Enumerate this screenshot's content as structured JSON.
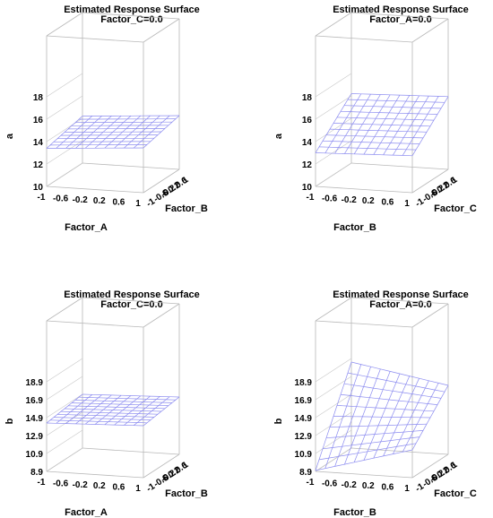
{
  "chart_data": [
    {
      "type": "surface",
      "title": "Estimated Response Surface",
      "subtitle": "Factor_C=0.0",
      "xlabel": "Factor_A",
      "ylabel": "Factor_B",
      "zlabel": "a",
      "x_ticks": [
        "-1",
        "-0.6",
        "-0.2",
        "0.2",
        "0.6",
        "1"
      ],
      "y_ticks": [
        "-1",
        "-0.6",
        "-0.2",
        "0.2",
        "0.6",
        "1"
      ],
      "z_ticks": [
        "10",
        "12",
        "14",
        "16",
        "18"
      ],
      "xlim": [
        -1,
        1
      ],
      "ylim": [
        -1,
        1
      ],
      "zlim": [
        10,
        18
      ],
      "surface": {
        "corner_xmin_ymin": 13.4,
        "corner_xmax_ymin": 14.0,
        "corner_xmin_ymax": 14.2,
        "corner_xmax_ymax": 14.8
      },
      "grid": true
    },
    {
      "type": "surface",
      "title": "Estimated Response Surface",
      "subtitle": "Factor_A=0.0",
      "xlabel": "Factor_B",
      "ylabel": "Factor_C",
      "zlabel": "a",
      "x_ticks": [
        "-1",
        "-0.6",
        "-0.2",
        "0.2",
        "0.6",
        "1"
      ],
      "y_ticks": [
        "-1",
        "-0.6",
        "-0.2",
        "0.2",
        "0.6",
        "1"
      ],
      "z_ticks": [
        "10",
        "12",
        "14",
        "16",
        "18"
      ],
      "xlim": [
        -1,
        1
      ],
      "ylim": [
        -1,
        1
      ],
      "zlim": [
        10,
        18
      ],
      "surface": {
        "corner_xmin_ymin": 13.0,
        "corner_xmax_ymin": 13.3,
        "corner_xmin_ymax": 16.2,
        "corner_xmax_ymax": 16.5
      },
      "grid": true
    },
    {
      "type": "surface",
      "title": "Estimated Response Surface",
      "subtitle": "Factor_C=0.0",
      "xlabel": "Factor_A",
      "ylabel": "Factor_B",
      "zlabel": "b",
      "x_ticks": [
        "-1",
        "-0.6",
        "-0.2",
        "0.2",
        "0.6",
        "1"
      ],
      "y_ticks": [
        "-1",
        "-0.6",
        "-0.2",
        "0.2",
        "0.6",
        "1"
      ],
      "z_ticks": [
        "8.9",
        "10.9",
        "12.9",
        "14.9",
        "16.9",
        "18.9"
      ],
      "xlim": [
        -1,
        1
      ],
      "ylim": [
        -1,
        1
      ],
      "zlim": [
        8.9,
        18.9
      ],
      "surface": {
        "corner_xmin_ymin": 14.3,
        "corner_xmax_ymin": 14.7,
        "corner_xmin_ymax": 14.9,
        "corner_xmax_ymax": 15.3
      },
      "grid": true
    },
    {
      "type": "surface",
      "title": "Estimated Response Surface",
      "subtitle": "Factor_A=0.0",
      "xlabel": "Factor_B",
      "ylabel": "Factor_C",
      "zlabel": "b",
      "x_ticks": [
        "-1",
        "-0.6",
        "-0.2",
        "0.2",
        "0.6",
        "1"
      ],
      "y_ticks": [
        "-1",
        "-0.6",
        "-0.2",
        "0.2",
        "0.6",
        "1"
      ],
      "z_ticks": [
        "8.9",
        "10.9",
        "12.9",
        "14.9",
        "16.9",
        "18.9"
      ],
      "xlim": [
        -1,
        1
      ],
      "ylim": [
        -1,
        1
      ],
      "zlim": [
        8.9,
        18.9
      ],
      "surface": {
        "corner_xmin_ymin": 9.0,
        "corner_xmax_ymin": 12.0,
        "corner_xmin_ymax": 18.5,
        "corner_xmax_ymax": 16.6
      },
      "grid": true
    }
  ],
  "colors": {
    "mesh": "#8c8cf0",
    "box": "#b8b8b8"
  }
}
